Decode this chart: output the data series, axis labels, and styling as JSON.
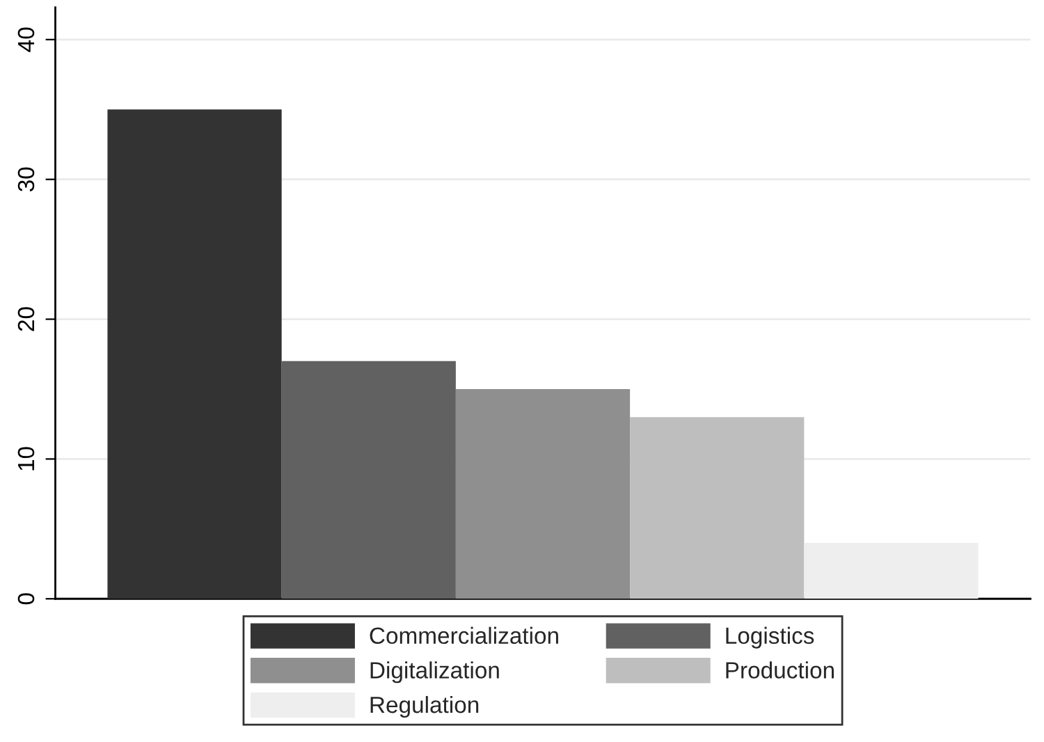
{
  "chart_data": {
    "type": "bar",
    "categories": [
      null
    ],
    "series": [
      {
        "name": "Commercialization",
        "color": "#333333",
        "values": [
          35
        ]
      },
      {
        "name": "Logistics",
        "color": "#616161",
        "values": [
          17
        ]
      },
      {
        "name": "Digitalization",
        "color": "#8f8f8f",
        "values": [
          15
        ]
      },
      {
        "name": "Production",
        "color": "#bebebe",
        "values": [
          13
        ]
      },
      {
        "name": "Regulation",
        "color": "#eeeeee",
        "values": [
          4
        ]
      }
    ],
    "ylim": [
      0,
      42.3
    ],
    "yticks": [
      0,
      10,
      20,
      30,
      40
    ],
    "grid": "y",
    "legend": "bottom"
  }
}
